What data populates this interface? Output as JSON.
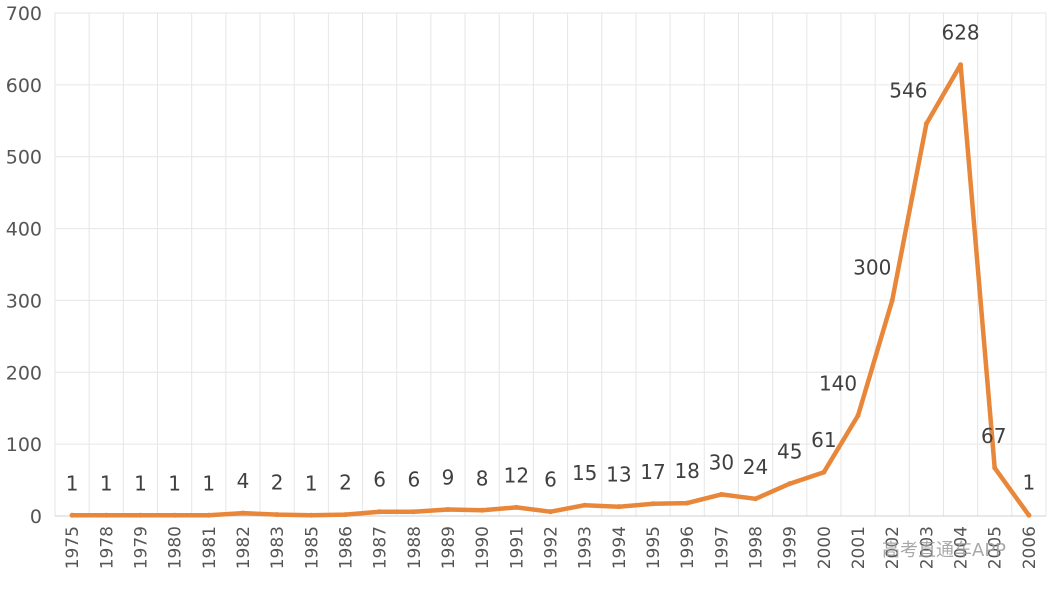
{
  "chart_data": {
    "type": "line",
    "categories": [
      "1975",
      "1978",
      "1979",
      "1980",
      "1981",
      "1982",
      "1983",
      "1985",
      "1986",
      "1987",
      "1988",
      "1989",
      "1990",
      "1991",
      "1992",
      "1993",
      "1994",
      "1995",
      "1996",
      "1997",
      "1998",
      "1999",
      "2000",
      "2001",
      "2002",
      "2003",
      "2004",
      "2005",
      "2006"
    ],
    "values": [
      1,
      1,
      1,
      1,
      1,
      4,
      2,
      1,
      2,
      6,
      6,
      9,
      8,
      12,
      6,
      15,
      13,
      17,
      18,
      30,
      24,
      45,
      61,
      140,
      300,
      546,
      628,
      67,
      1
    ],
    "ylim": [
      0,
      700
    ],
    "yticks": [
      0,
      100,
      200,
      300,
      400,
      500,
      600,
      700
    ],
    "grid": true,
    "data_labels": true,
    "line_color": "#E8873A"
  },
  "watermark": "高考直通车APP"
}
